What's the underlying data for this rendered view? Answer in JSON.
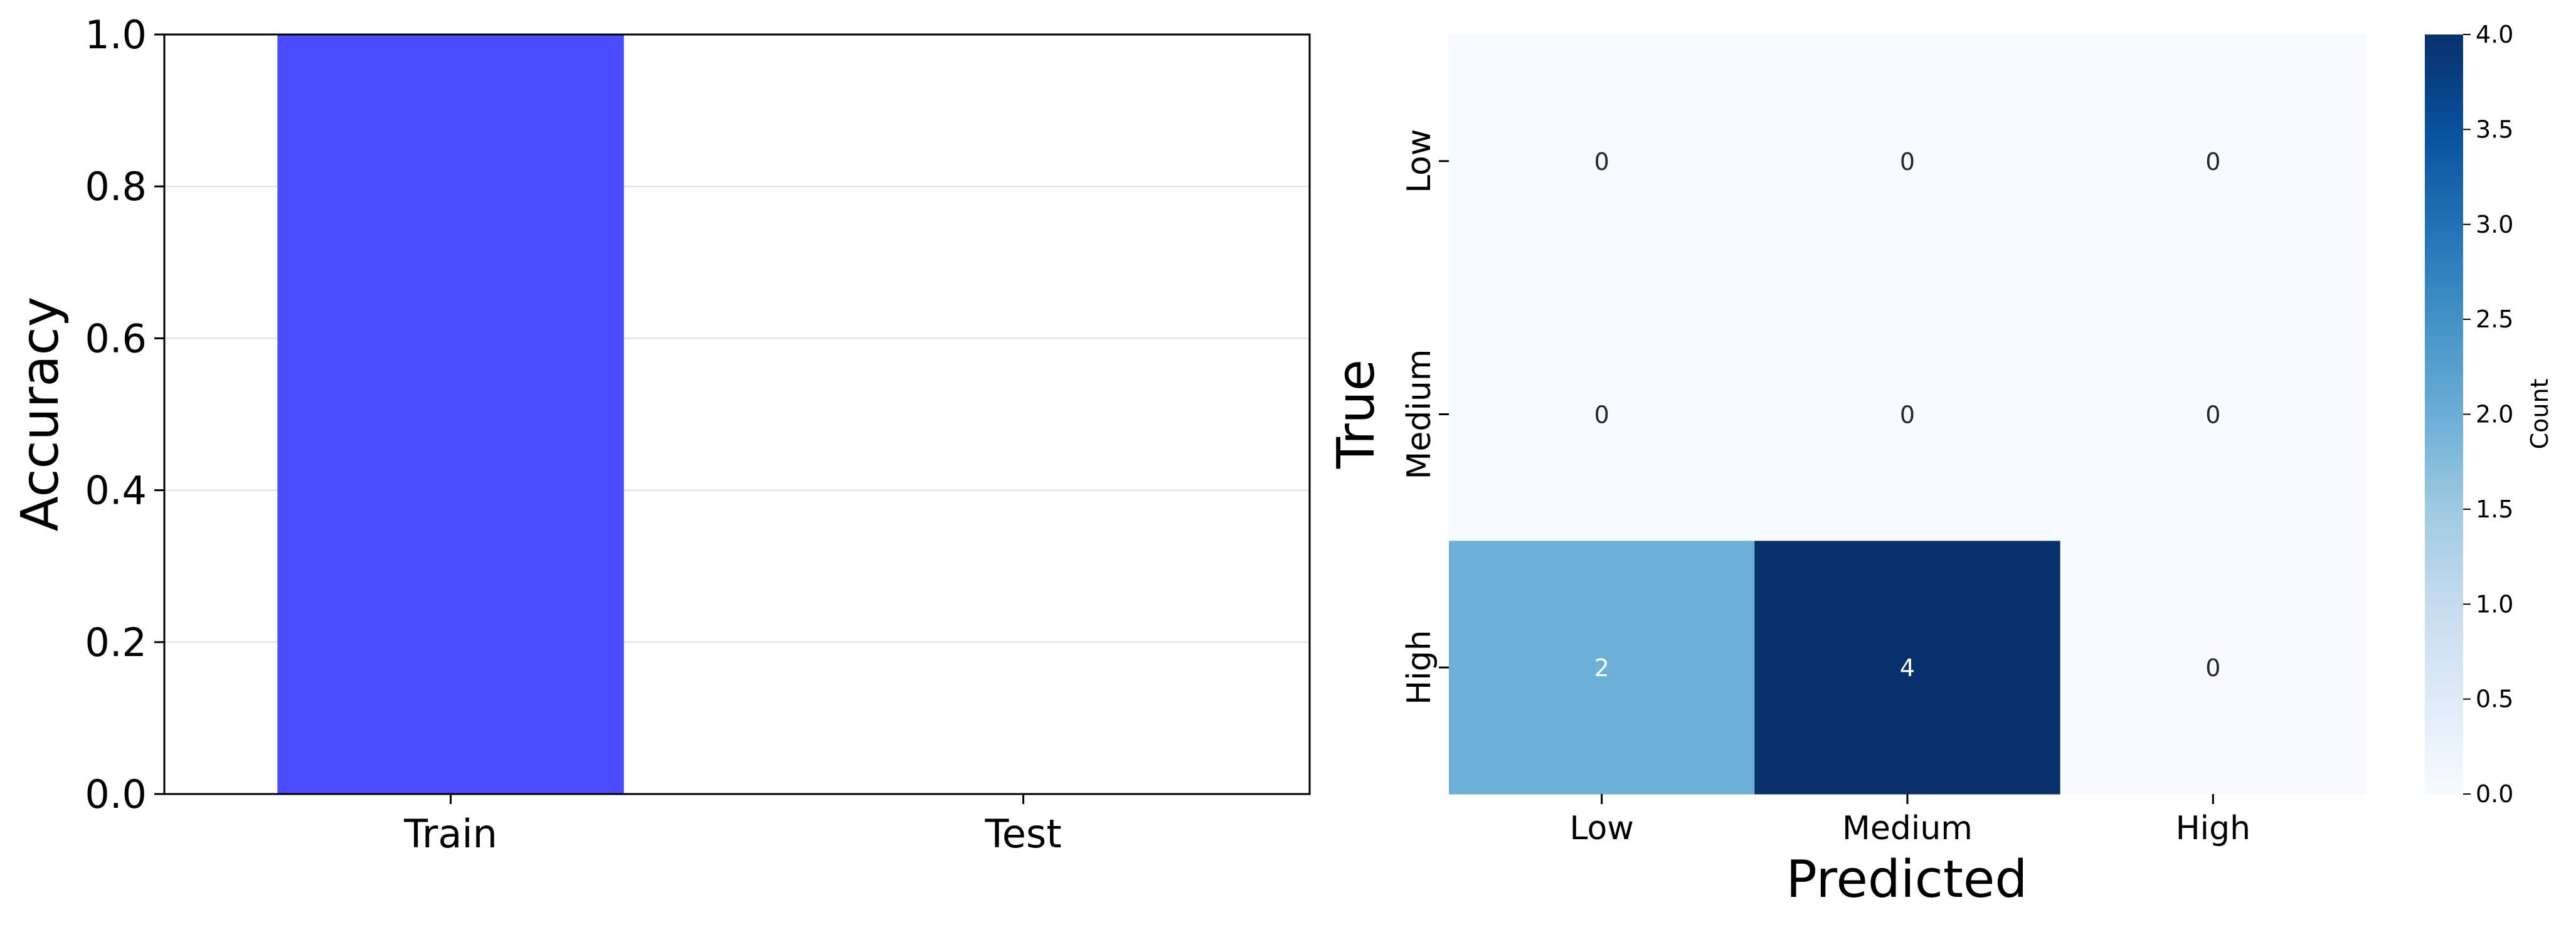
{
  "chart_data": [
    {
      "type": "bar",
      "categories": [
        "Train",
        "Test"
      ],
      "values": [
        1.0,
        0.0
      ],
      "title": "",
      "xlabel": "",
      "ylabel": "Accuracy",
      "ylim": [
        0,
        1.0
      ],
      "yticks": [
        "0.0",
        "0.2",
        "0.4",
        "0.6",
        "0.8",
        "1.0"
      ],
      "grid": "horizontal",
      "bar_color": "#4b4bff"
    },
    {
      "type": "heatmap",
      "title": "",
      "xlabel": "Predicted",
      "ylabel": "True",
      "x_categories": [
        "Low",
        "Medium",
        "High"
      ],
      "y_categories": [
        "Low",
        "Medium",
        "High"
      ],
      "values": [
        [
          0,
          0,
          0
        ],
        [
          0,
          0,
          0
        ],
        [
          2,
          4,
          0
        ]
      ],
      "colorbar": {
        "label": "Count",
        "range": [
          0,
          4.0
        ],
        "ticks": [
          "0.0",
          "0.5",
          "1.0",
          "1.5",
          "2.0",
          "2.5",
          "3.0",
          "3.5",
          "4.0"
        ],
        "colormap": "Blues"
      }
    }
  ]
}
